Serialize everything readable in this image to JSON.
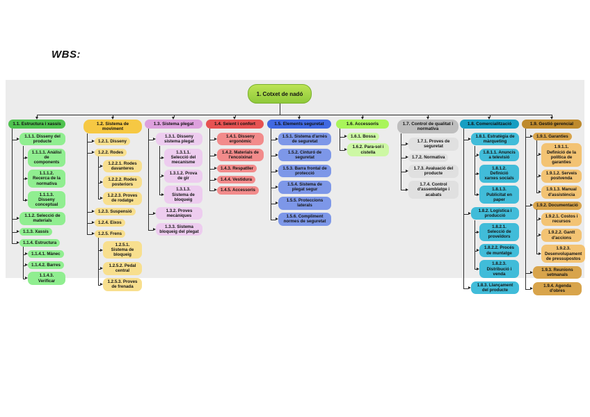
{
  "page_title": "WBS:",
  "diagram": {
    "type": "tree",
    "root": {
      "label": "1. Cotxet de nadó",
      "color": "#9acd32"
    },
    "line_color": "#2d2d2d",
    "canvas_color": "#ececec",
    "branches": [
      {
        "label": "1.1. Estructura i xassís",
        "header_color": "#4fc24f",
        "child_color": "#90ee90",
        "children": [
          {
            "label": "1.1.1. Disseny del producte",
            "children": [
              {
                "label": "1.1.1.1. Anàlisi de components"
              },
              {
                "label": "1.1.1.2. Recerca de la normativa"
              },
              {
                "label": "1.1.1.3. Disseny conceptual"
              }
            ]
          },
          {
            "label": "1.1.2. Selecció de materials"
          },
          {
            "label": "1.1.3. Xassís"
          },
          {
            "label": "1.1.4. Estructura",
            "children": [
              {
                "label": "1.1.4.1. Mànec"
              },
              {
                "label": "1.1.4.2. Barres"
              },
              {
                "label": "1.1.4.3. Verificar"
              }
            ]
          }
        ]
      },
      {
        "label": "1.2. Sistema de moviment",
        "header_color": "#f6c843",
        "child_color": "#f8df8e",
        "children": [
          {
            "label": "1.2.1. Disseny"
          },
          {
            "label": "1.2.2. Rodes",
            "children": [
              {
                "label": "1.2.2.1. Rodes davanteres"
              },
              {
                "label": "1.2.2.2. Rodes posteriors"
              },
              {
                "label": "1.2.2.3. Proves de rodatge"
              }
            ]
          },
          {
            "label": "1.2.3. Suspensió"
          },
          {
            "label": "1.2.4. Eixos"
          },
          {
            "label": "1.2.5. Frens",
            "children": [
              {
                "label": "1.2.5.1. Sistema de bloqueig"
              },
              {
                "label": "1.2.5.2. Pedal central"
              },
              {
                "label": "1.2.5.3. Proves de frenada"
              }
            ]
          }
        ]
      },
      {
        "label": "1.3. Sistema plegat",
        "header_color": "#dda0dd",
        "child_color": "#edccef",
        "children": [
          {
            "label": "1.3.1. Disseny sistema plegat",
            "children": [
              {
                "label": "1.3.1.1. Selecció del mecanisme"
              },
              {
                "label": "1.3.1.2. Prova de gir"
              },
              {
                "label": "1.3.1.3. Sistema de bloqueig"
              }
            ]
          },
          {
            "label": "1.3.2. Proves mecàniques"
          },
          {
            "label": "1.3.3. Sistema bloqueig del plegat"
          }
        ]
      },
      {
        "label": "1.4. Seient i confort",
        "header_color": "#e65252",
        "child_color": "#f28b8b",
        "children": [
          {
            "label": "1.4.1. Disseny ergonòmic"
          },
          {
            "label": "1.4.2. Materials de l'encoixinat"
          },
          {
            "label": "1.4.3. Respatller"
          },
          {
            "label": "1.4.4. Vestidura"
          },
          {
            "label": "1.4.5. Accessoris"
          }
        ]
      },
      {
        "label": "1.5. Elements seguretat",
        "header_color": "#4169e1",
        "child_color": "#7d97e8",
        "children": [
          {
            "label": "1.5.1. Sistema d'arnès de seguretat"
          },
          {
            "label": "1.5.2. Cinturó de seguretat"
          },
          {
            "label": "1.5.3. Barra frontal de protecció"
          },
          {
            "label": "1.5.4. Sistema de plegat segur"
          },
          {
            "label": "1.5.5. Proteccions laterals"
          },
          {
            "label": "1.5.6. Compliment normes de seguretat"
          }
        ]
      },
      {
        "label": "1.6. Accessoris",
        "header_color": "#a9f55b",
        "child_color": "#cdf8a4",
        "children": [
          {
            "label": "1.6.1. Bossa"
          },
          {
            "label": "1.6.2. Para-sol i cistella"
          }
        ]
      },
      {
        "label": "1.7. Control de qualitat i normativa",
        "header_color": "#bebebe",
        "child_color": "#e0e0e0",
        "children": [
          {
            "label": "1.7.1. Proves de seguretat"
          },
          {
            "label": "1.7.2. Normativa"
          },
          {
            "label": "1.7.3. Avaluació del producte"
          },
          {
            "label": "1.7.4. Control d'assemblatge i acabats"
          }
        ]
      },
      {
        "label": "1.8. Comercialització",
        "header_color": "#189ec2",
        "child_color": "#41bcd9",
        "children": [
          {
            "label": "1.8.1. Estratègia de màrqueting",
            "children": [
              {
                "label": "1.8.1.1. Anuncis a televisió"
              },
              {
                "label": "1.8.1.2. Definició xarxes socials"
              },
              {
                "label": "1.8.1.3. Publicitat en paper"
              }
            ]
          },
          {
            "label": "1.8.2. Logística i producció",
            "children": [
              {
                "label": "1.8.2.1. Selecció de proveïdors"
              },
              {
                "label": "1.8.2.2. Procés de muntatge"
              },
              {
                "label": "1.8.2.3. Distribució i venda"
              }
            ]
          },
          {
            "label": "1.8.3. Llançament del producte"
          }
        ]
      },
      {
        "label": "1.9. Gestió gerencial",
        "header_color": "#be8a2d",
        "child_color": "#d8a44b",
        "grandchild_color": "#f3c373",
        "children": [
          {
            "label": "1.9.1. Garanties",
            "children": [
              {
                "label": "1.9.1.1. Definició de la política de garanties"
              },
              {
                "label": "1.9.1.2. Serveis postvenda"
              },
              {
                "label": "1.9.1.3. Manual d'assistència"
              }
            ]
          },
          {
            "label": "1.9.2. Documentació",
            "children": [
              {
                "label": "1.9.2.1. Costos i recursos"
              },
              {
                "label": "1.9.2.2. Gantt d'accions"
              },
              {
                "label": "1.9.2.3. Desenvolupament de pressupostos"
              }
            ]
          },
          {
            "label": "1.9.3. Reunions setmanals"
          },
          {
            "label": "1.9.4. Agenda d'obres"
          }
        ]
      }
    ]
  }
}
